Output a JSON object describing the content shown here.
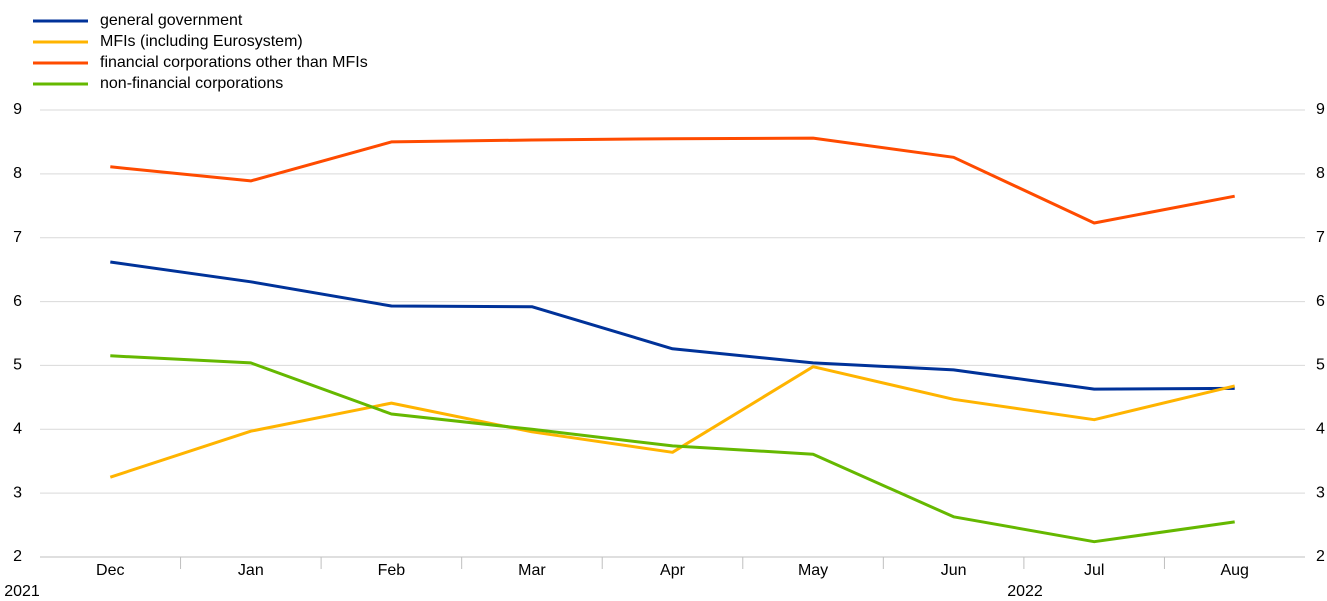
{
  "chart_data": {
    "type": "line",
    "categories": [
      "Dec",
      "Jan",
      "Feb",
      "Mar",
      "Apr",
      "May",
      "Jun",
      "Jul",
      "Aug"
    ],
    "year_labels": [
      "2021",
      "2022"
    ],
    "series": [
      {
        "name": "general government",
        "color": "#003299",
        "values": [
          6.62,
          6.31,
          5.93,
          5.92,
          5.26,
          5.04,
          4.93,
          4.63,
          4.64
        ]
      },
      {
        "name": "MFIs (including Eurosystem)",
        "color": "#ffb400",
        "values": [
          3.25,
          3.97,
          4.41,
          3.96,
          3.64,
          4.98,
          4.47,
          4.15,
          4.68
        ]
      },
      {
        "name": "financial corporations other than MFIs",
        "color": "#ff4b00",
        "values": [
          8.11,
          7.89,
          8.5,
          8.53,
          8.55,
          8.56,
          8.26,
          7.23,
          7.65
        ]
      },
      {
        "name": "non-financial corporations",
        "color": "#65b800",
        "values": [
          5.15,
          5.04,
          4.24,
          4.0,
          3.74,
          3.61,
          2.63,
          2.24,
          2.55
        ]
      }
    ],
    "ylim": [
      2,
      9
    ],
    "yticks": [
      2,
      3,
      4,
      5,
      6,
      7,
      8,
      9
    ],
    "y2lim": [
      2,
      9
    ],
    "y2ticks": [
      2,
      3,
      4,
      5,
      6,
      7,
      8,
      9
    ],
    "grid": true,
    "legend": "top-left"
  }
}
